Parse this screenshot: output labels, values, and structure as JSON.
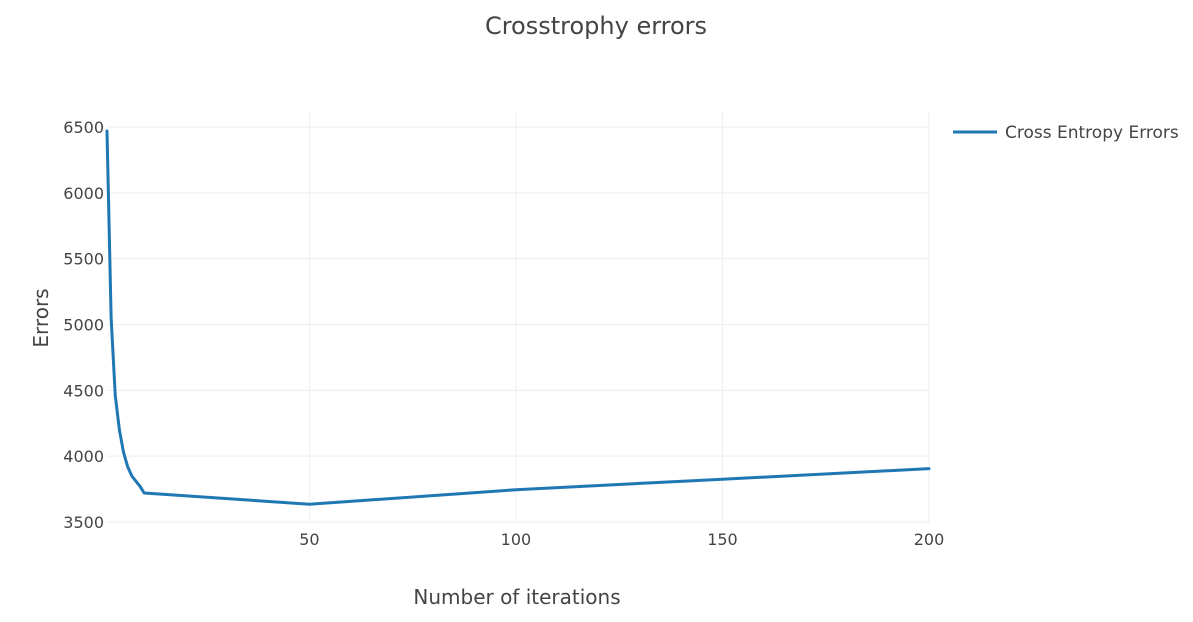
{
  "chart_data": {
    "type": "line",
    "title": "Crosstrophy errors",
    "xlabel": "Number of iterations",
    "ylabel": "Errors",
    "xlim": [
      1,
      200
    ],
    "ylim": [
      3500,
      6500
    ],
    "x_ticks": [
      50,
      100,
      150,
      200
    ],
    "y_ticks": [
      3500,
      4000,
      4500,
      5000,
      5500,
      6000,
      6500
    ],
    "grid": true,
    "legend_position": "top-right",
    "series": [
      {
        "name": "Cross Entropy Errors",
        "color": "#1f77b4",
        "x": [
          1,
          2,
          3,
          4,
          5,
          6,
          7,
          8,
          9,
          10,
          50,
          100,
          150,
          200
        ],
        "y": [
          6470,
          5050,
          4460,
          4200,
          4030,
          3920,
          3850,
          3810,
          3770,
          3720,
          3635,
          3745,
          3825,
          3905
        ]
      }
    ]
  }
}
